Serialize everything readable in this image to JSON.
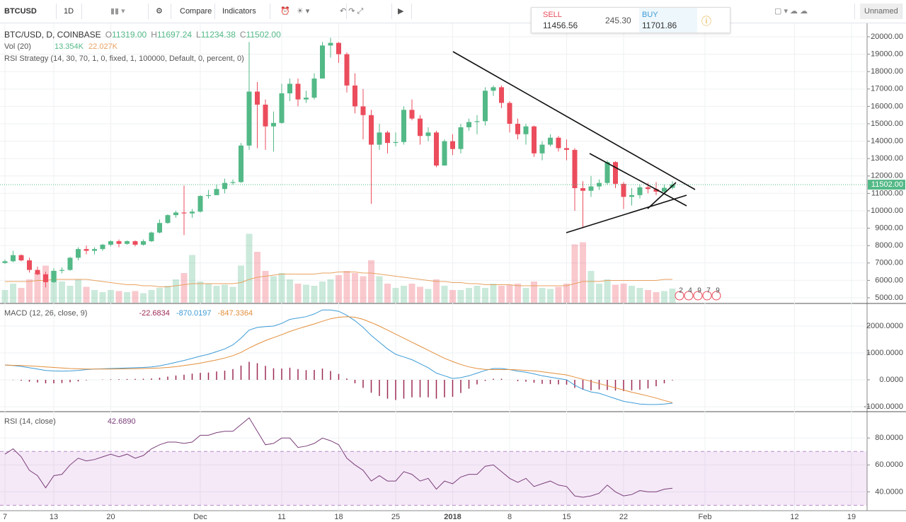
{
  "toolbar": {
    "symbol": "BTCUSD",
    "interval": "1D",
    "compare": "Compare",
    "indicators": "Indicators",
    "layout": "Unnamed"
  },
  "trade": {
    "sell": "SELL",
    "sell_price": "11456.56",
    "spread": "245.30",
    "buy": "BUY",
    "buy_price": "11701.86"
  },
  "legend": {
    "title": "BTC/USD, D, COINBASE",
    "ohlc": [
      {
        "key": "O",
        "value": "11319.00"
      },
      {
        "key": "H",
        "value": "11697.24"
      },
      {
        "key": "L",
        "value": "11234.38"
      },
      {
        "key": "C",
        "value": "11502.00"
      }
    ],
    "volume": "Vol (20)",
    "volume_label": "13.354K",
    "volume_ma_label": "22.027K",
    "strategy": "RSI Strategy (14, 30, 70, 1, 0, fixed, 1, 100000, Default, 0, percent, 0)"
  },
  "price": {
    "type": "candlestick",
    "up_color": "#53b987",
    "down_color": "#eb4d5c",
    "volume_ma_color": "#e8a262",
    "ylim": [
      4715,
      20570
    ],
    "yticks": [
      {
        "value": 5000,
        "label": "5000.00"
      },
      {
        "value": 6000,
        "label": "6000.00"
      },
      {
        "value": 7000,
        "label": "7000.00"
      },
      {
        "value": 8000,
        "label": "8000.00"
      },
      {
        "value": 9000,
        "label": "9000.00"
      },
      {
        "value": 10000,
        "label": "10000.00"
      },
      {
        "value": 11000,
        "label": "11000.00"
      },
      {
        "value": 12000,
        "label": "12000.00"
      },
      {
        "value": 13000,
        "label": "13000.00"
      },
      {
        "value": 14000,
        "label": "14000.00"
      },
      {
        "value": 15000,
        "label": "15000.00"
      },
      {
        "value": 16000,
        "label": "16000.00"
      },
      {
        "value": 17000,
        "label": "17000.00"
      },
      {
        "value": 18000,
        "label": "18000.00"
      },
      {
        "value": 19000,
        "label": "19000.00"
      },
      {
        "value": 20000,
        "label": "20000.00"
      }
    ],
    "last": 11502,
    "last_label": "11502.00",
    "volume_lim": [
      0,
      80
    ],
    "strategy_labels": [
      "2",
      "4",
      "9",
      "7",
      "9"
    ],
    "ohlc": [
      [
        7000,
        7200,
        6950,
        7100
      ],
      [
        7100,
        7700,
        7050,
        7450
      ],
      [
        7450,
        7500,
        7100,
        7150
      ],
      [
        7150,
        7300,
        6450,
        6600
      ],
      [
        6600,
        6800,
        6300,
        6350
      ],
      [
        6350,
        6500,
        5600,
        5900
      ],
      [
        5900,
        6700,
        5850,
        6550
      ],
      [
        6550,
        6750,
        6400,
        6600
      ],
      [
        6600,
        7350,
        6550,
        7300
      ],
      [
        7300,
        7900,
        7150,
        7800
      ],
      [
        7800,
        8000,
        7500,
        7700
      ],
      [
        7700,
        7900,
        7500,
        7800
      ],
      [
        7800,
        8100,
        7700,
        8050
      ],
      [
        8050,
        8300,
        7950,
        8250
      ],
      [
        8250,
        8350,
        7900,
        8100
      ],
      [
        8100,
        8300,
        8050,
        8250
      ],
      [
        8250,
        8300,
        7950,
        8050
      ],
      [
        8050,
        8350,
        8000,
        8250
      ],
      [
        8250,
        8800,
        8200,
        8750
      ],
      [
        8750,
        9500,
        8700,
        9300
      ],
      [
        9300,
        9800,
        9250,
        9750
      ],
      [
        9750,
        10000,
        9600,
        9900
      ],
      [
        9900,
        11450,
        8600,
        9850
      ],
      [
        9850,
        10100,
        9600,
        9950
      ],
      [
        9950,
        10900,
        9900,
        10850
      ],
      [
        10850,
        11200,
        10700,
        10900
      ],
      [
        10900,
        11500,
        10900,
        11250
      ],
      [
        11250,
        11850,
        11000,
        11600
      ],
      [
        11600,
        11800,
        11500,
        11650
      ],
      [
        11650,
        13900,
        11600,
        13750
      ],
      [
        13750,
        19700,
        13500,
        16850
      ],
      [
        16850,
        17400,
        13600,
        16100
      ],
      [
        16100,
        16400,
        13500,
        14850
      ],
      [
        14850,
        15700,
        13400,
        15050
      ],
      [
        15050,
        17300,
        15000,
        16750
      ],
      [
        16750,
        17600,
        16300,
        17300
      ],
      [
        17300,
        17600,
        16000,
        16400
      ],
      [
        16400,
        16900,
        16200,
        16500
      ],
      [
        16500,
        17900,
        16400,
        17600
      ],
      [
        17600,
        19700,
        17600,
        19500
      ],
      [
        19500,
        19950,
        18800,
        19650
      ],
      [
        19650,
        19700,
        18500,
        19000
      ],
      [
        19000,
        19100,
        16800,
        17200
      ],
      [
        17200,
        17900,
        15600,
        16000
      ],
      [
        16000,
        17000,
        14100,
        15500
      ],
      [
        15500,
        15800,
        10400,
        13800
      ],
      [
        13800,
        15000,
        13500,
        14500
      ],
      [
        14500,
        14600,
        13300,
        13900
      ],
      [
        13900,
        14500,
        13700,
        13950
      ],
      [
        13950,
        16000,
        13800,
        15800
      ],
      [
        15800,
        16400,
        15200,
        15300
      ],
      [
        15300,
        15500,
        13800,
        14300
      ],
      [
        14300,
        14800,
        14000,
        14500
      ],
      [
        14500,
        14600,
        12500,
        12600
      ],
      [
        12600,
        14100,
        12600,
        14000
      ],
      [
        14000,
        14400,
        13200,
        13550
      ],
      [
        13550,
        15000,
        13300,
        14800
      ],
      [
        14800,
        15300,
        14600,
        15100
      ],
      [
        15100,
        15500,
        14400,
        15150
      ],
      [
        15150,
        17100,
        14900,
        16900
      ],
      [
        16900,
        17200,
        16600,
        17100
      ],
      [
        17100,
        17200,
        15900,
        16200
      ],
      [
        16200,
        16300,
        14500,
        15000
      ],
      [
        15000,
        15300,
        14100,
        14400
      ],
      [
        14400,
        15000,
        13800,
        14850
      ],
      [
        14850,
        14900,
        13100,
        13300
      ],
      [
        13300,
        14000,
        12900,
        13800
      ],
      [
        13800,
        14400,
        13700,
        14200
      ],
      [
        14200,
        14300,
        13400,
        13600
      ],
      [
        13600,
        14100,
        12900,
        13500
      ],
      [
        13500,
        13600,
        10000,
        11300
      ],
      [
        11300,
        11700,
        9000,
        11150
      ],
      [
        11150,
        12000,
        10800,
        11400
      ],
      [
        11400,
        11800,
        11200,
        11600
      ],
      [
        11600,
        12900,
        11500,
        12800
      ],
      [
        12800,
        12850,
        11300,
        11550
      ],
      [
        11550,
        11650,
        10100,
        10800
      ],
      [
        10800,
        11300,
        10300,
        10900
      ],
      [
        10900,
        11500,
        10700,
        11350
      ],
      [
        11350,
        11600,
        11000,
        11250
      ],
      [
        11250,
        11650,
        10900,
        11100
      ],
      [
        11100,
        11500,
        11000,
        11319
      ],
      [
        11319,
        11697.24,
        11234.38,
        11502
      ]
    ],
    "volume": [
      12,
      18,
      14,
      22,
      28,
      35,
      30,
      20,
      16,
      22,
      15,
      12,
      10,
      12,
      11,
      10,
      11,
      9,
      12,
      14,
      16,
      22,
      28,
      45,
      20,
      18,
      16,
      17,
      15,
      35,
      65,
      48,
      30,
      25,
      28,
      22,
      18,
      17,
      16,
      20,
      22,
      26,
      30,
      28,
      25,
      40,
      25,
      18,
      14,
      16,
      18,
      15,
      13,
      22,
      16,
      12,
      12,
      14,
      16,
      14,
      18,
      16,
      17,
      18,
      14,
      20,
      14,
      13,
      15,
      18,
      55,
      57,
      30,
      18,
      22,
      17,
      18,
      16,
      14,
      12,
      10,
      11,
      13.354
    ],
    "volume_ma": [
      20,
      20,
      20,
      20,
      21,
      21,
      22,
      22,
      22,
      22,
      22,
      21,
      20,
      19,
      18,
      17,
      17,
      16,
      16,
      15,
      15,
      16,
      17,
      18,
      18,
      18,
      18,
      18,
      18,
      19,
      22,
      24,
      25,
      26,
      27,
      27,
      27,
      27,
      27,
      28,
      28,
      29,
      29,
      29,
      28,
      28,
      27,
      26,
      25,
      24,
      23,
      22,
      21,
      20,
      20,
      19,
      19,
      18,
      18,
      17,
      17,
      17,
      17,
      16,
      16,
      16,
      16,
      16,
      16,
      16,
      18,
      20,
      20,
      20,
      21,
      21,
      21,
      21,
      21,
      21,
      21,
      22,
      22.027
    ]
  },
  "macd": {
    "type": "line",
    "title": "MACD (12, 26, close, 9)",
    "macd_color": "#3d9bd6",
    "signal_color": "#e38f3c",
    "histogram_color": "#9c2a55",
    "ylim": [
      -1132,
      2763
    ],
    "yticks": [
      {
        "value": -1000,
        "label": "-1000.0000"
      },
      {
        "value": 0,
        "label": "0.0000"
      },
      {
        "value": 1000,
        "label": "1000.0000"
      },
      {
        "value": 2000,
        "label": "2000.0000"
      }
    ],
    "macd": [
      550,
      530,
      500,
      450,
      400,
      350,
      330,
      320,
      330,
      350,
      380,
      400,
      410,
      420,
      430,
      440,
      450,
      460,
      480,
      520,
      580,
      650,
      720,
      800,
      880,
      950,
      1050,
      1150,
      1300,
      1550,
      1850,
      1950,
      1980,
      2000,
      2100,
      2250,
      2300,
      2350,
      2450,
      2600,
      2600,
      2550,
      2400,
      2200,
      1950,
      1650,
      1400,
      1150,
      950,
      850,
      750,
      600,
      450,
      250,
      150,
      50,
      80,
      150,
      250,
      350,
      420,
      420,
      380,
      320,
      280,
      220,
      150,
      100,
      50,
      0,
      -200,
      -350,
      -450,
      -500,
      -600,
      -700,
      -800,
      -850,
      -900,
      -920,
      -920,
      -900,
      -870.0197
    ],
    "signal": [
      550,
      540,
      535,
      520,
      500,
      480,
      460,
      440,
      420,
      410,
      400,
      400,
      400,
      400,
      405,
      410,
      415,
      420,
      430,
      440,
      460,
      490,
      530,
      570,
      620,
      680,
      740,
      810,
      900,
      1020,
      1180,
      1330,
      1460,
      1570,
      1680,
      1800,
      1900,
      1990,
      2080,
      2180,
      2270,
      2330,
      2350,
      2330,
      2250,
      2130,
      2000,
      1850,
      1700,
      1550,
      1400,
      1250,
      1100,
      950,
      800,
      680,
      570,
      480,
      420,
      390,
      380,
      380,
      380,
      370,
      350,
      330,
      300,
      260,
      220,
      180,
      100,
      20,
      -60,
      -140,
      -220,
      -300,
      -380,
      -460,
      -530,
      -600,
      -680,
      -770,
      -847.3364
    ],
    "histogram": [
      0,
      -10,
      -35,
      -70,
      -100,
      -130,
      -130,
      -120,
      -90,
      -60,
      -20,
      0,
      10,
      20,
      25,
      30,
      35,
      40,
      50,
      80,
      120,
      160,
      190,
      230,
      260,
      270,
      310,
      340,
      400,
      530,
      670,
      620,
      520,
      430,
      420,
      450,
      400,
      360,
      370,
      420,
      330,
      220,
      50,
      -130,
      -300,
      -480,
      -600,
      -700,
      -750,
      -700,
      -650,
      -650,
      -650,
      -700,
      -650,
      -630,
      -490,
      -330,
      -170,
      -40,
      40,
      40,
      0,
      -50,
      -70,
      -110,
      -150,
      -160,
      -170,
      -180,
      -300,
      -370,
      -390,
      -360,
      -380,
      -400,
      -420,
      -390,
      -370,
      -320,
      -240,
      -130,
      -22.6834
    ]
  },
  "rsi": {
    "type": "line",
    "title": "RSI (14, close)",
    "value_label": "42.6890",
    "color": "#7b3f7a",
    "band": [
      30,
      70
    ],
    "ylim": [
      26,
      98
    ],
    "yticks": [
      {
        "value": 40,
        "label": "40.0000"
      },
      {
        "value": 60,
        "label": "60.0000"
      },
      {
        "value": 80,
        "label": "80.0000"
      }
    ],
    "values": [
      68,
      72,
      66,
      56,
      52,
      43,
      52,
      53,
      60,
      65,
      63,
      64,
      66,
      68,
      66,
      68,
      65,
      67,
      72,
      75,
      77,
      77,
      76,
      77,
      82,
      82,
      84,
      85,
      85,
      90,
      95,
      85,
      75,
      76,
      80,
      80,
      73,
      74,
      76,
      80,
      78,
      75,
      65,
      60,
      56,
      48,
      52,
      48,
      48,
      55,
      53,
      48,
      50,
      42,
      48,
      46,
      51,
      53,
      53,
      59,
      60,
      55,
      50,
      47,
      50,
      44,
      46,
      48,
      45,
      44,
      37,
      36,
      37,
      39,
      45,
      40,
      37,
      38,
      41,
      40,
      40,
      42,
      42.689
    ]
  },
  "xaxis": {
    "ticks": [
      {
        "value": 0,
        "label": "7"
      },
      {
        "value": 6,
        "label": "13"
      },
      {
        "value": 13,
        "label": "20"
      },
      {
        "value": 24,
        "label": "Dec"
      },
      {
        "value": 34,
        "label": "11"
      },
      {
        "value": 41,
        "label": "18"
      },
      {
        "value": 48,
        "label": "25"
      },
      {
        "value": 55,
        "label": "2018"
      },
      {
        "value": 62,
        "label": "8"
      },
      {
        "value": 69,
        "label": "15"
      },
      {
        "value": 76,
        "label": "22"
      },
      {
        "value": 86,
        "label": "Feb"
      },
      {
        "value": 97,
        "label": "12"
      },
      {
        "value": 104,
        "label": "19"
      }
    ]
  }
}
